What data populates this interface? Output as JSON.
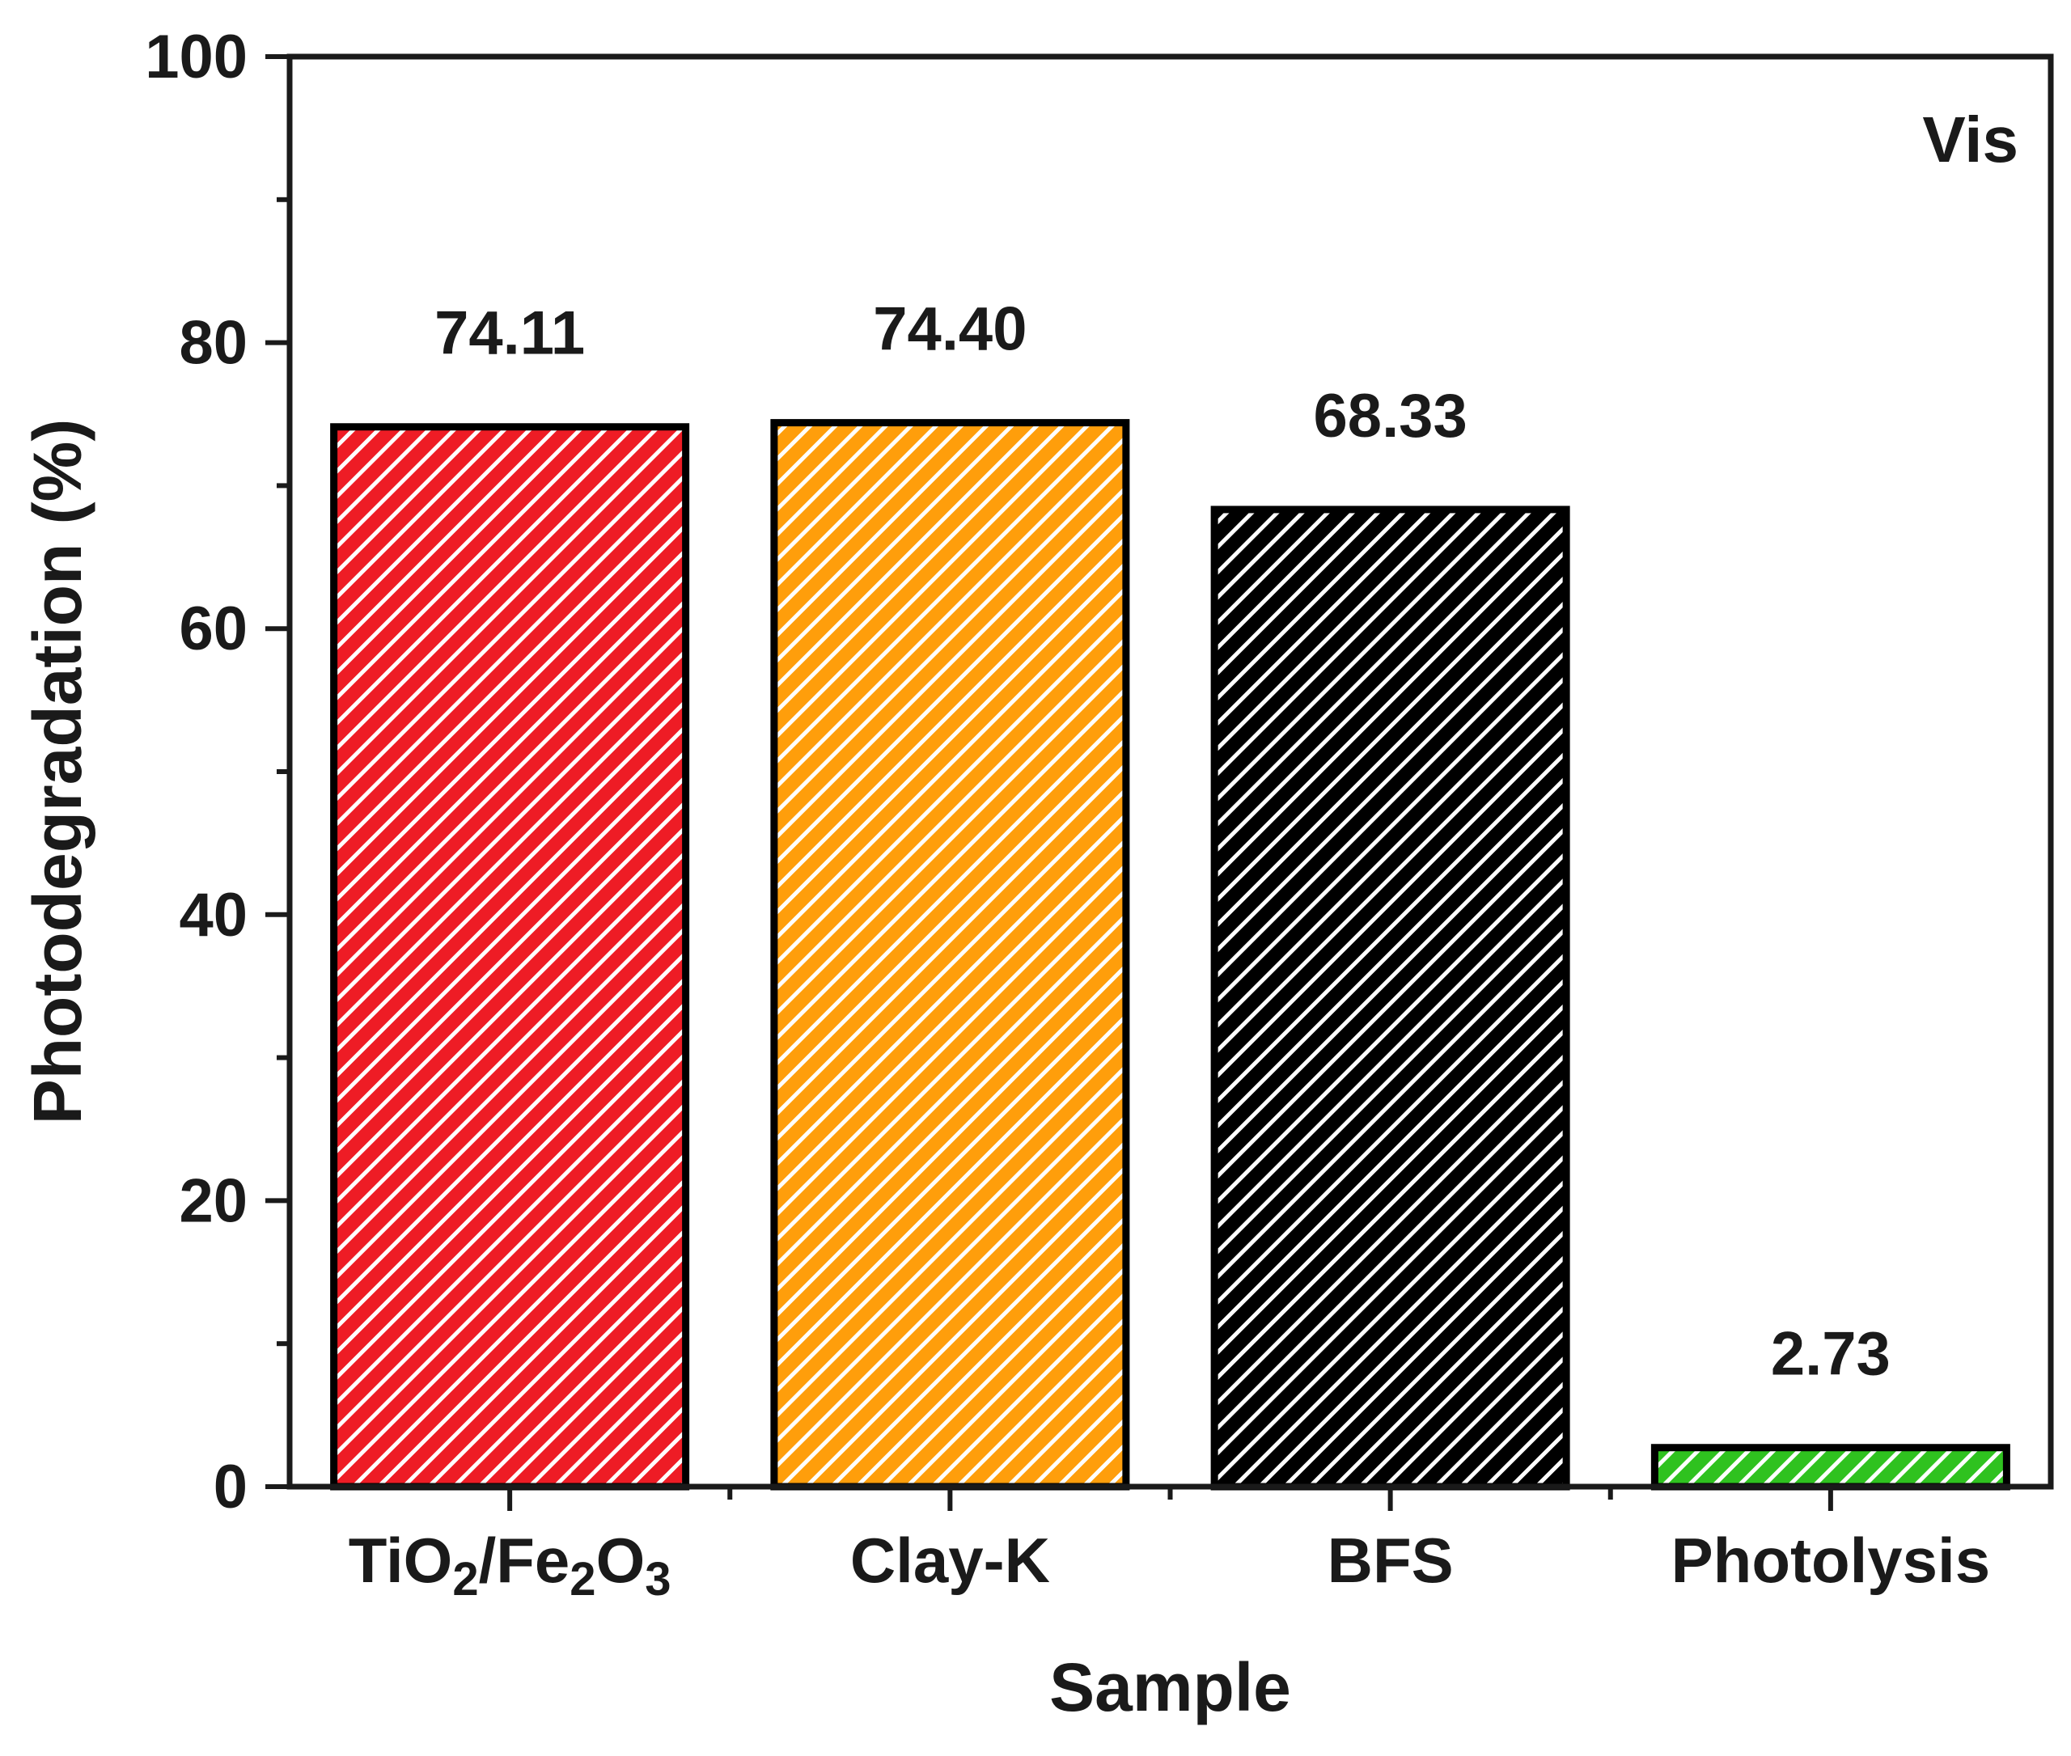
{
  "chart_data": {
    "type": "bar",
    "title": "",
    "xlabel": "Sample",
    "ylabel": "Photodegradation (%)",
    "ylim": [
      0,
      100
    ],
    "yticks": [
      0,
      20,
      40,
      60,
      80,
      100
    ],
    "y_minor_step": 10,
    "annotation": "Vis",
    "legend": "none",
    "grid": false,
    "categories": [
      {
        "label": "TiO2/Fe2O3",
        "parts": [
          [
            "Ti",
            ""
          ],
          [
            "O",
            ""
          ],
          [
            "2",
            "sub"
          ],
          [
            "/Fe",
            ""
          ],
          [
            "2",
            "sub"
          ],
          [
            "O",
            ""
          ],
          [
            "3",
            "sub"
          ]
        ]
      },
      {
        "label": "Clay-K",
        "parts": [
          [
            "Clay-K",
            ""
          ]
        ]
      },
      {
        "label": "BFS",
        "parts": [
          [
            "BFS",
            ""
          ]
        ]
      },
      {
        "label": "Photolysis",
        "parts": [
          [
            "Photolysis",
            ""
          ]
        ]
      }
    ],
    "values": [
      74.11,
      74.4,
      68.33,
      2.73
    ],
    "value_labels": [
      "74.11",
      "74.40",
      "68.33",
      "2.73"
    ],
    "colors": [
      "#ee1c25",
      "#ff9e0b",
      "#000000",
      "#2fc21f"
    ],
    "pattern": "diagonal-hatch"
  }
}
